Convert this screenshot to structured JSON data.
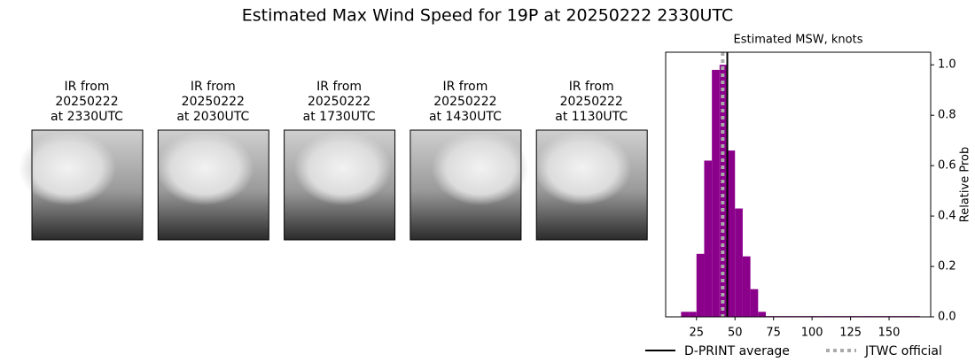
{
  "title": "Estimated Max Wind Speed for 19P at 20250222 2330UTC",
  "panels": [
    {
      "lines": [
        "IR from",
        "20250222",
        "at 2330UTC"
      ]
    },
    {
      "lines": [
        "IR from",
        "20250222",
        "at 2030UTC"
      ]
    },
    {
      "lines": [
        "IR from",
        "20250222",
        "at 1730UTC"
      ]
    },
    {
      "lines": [
        "IR from",
        "20250222",
        "at 1430UTC"
      ]
    },
    {
      "lines": [
        "IR from",
        "20250222",
        "at 1130UTC"
      ]
    }
  ],
  "chart_data": {
    "type": "histogram",
    "title": "Estimated MSW, knots",
    "ylabel": "Relative Prob",
    "yaxis_side": "right",
    "color": "#8b008b",
    "bins": [
      15,
      20,
      25,
      30,
      35,
      40,
      45,
      50,
      55,
      60,
      65,
      70,
      75,
      80,
      85,
      90,
      95,
      100,
      105,
      110,
      115,
      120,
      125,
      130,
      135,
      140,
      145,
      150,
      155,
      160,
      165,
      170
    ],
    "values": [
      0.02,
      0.02,
      0.25,
      0.62,
      0.98,
      1.0,
      0.66,
      0.43,
      0.24,
      0.11,
      0.02,
      0.003,
      0.003,
      0.003,
      0.003,
      0.003,
      0.003,
      0.003,
      0.003,
      0.003,
      0.003,
      0.003,
      0.003,
      0.003,
      0.003,
      0.003,
      0.003,
      0.003,
      0.003,
      0.003,
      0.003
    ],
    "xlim": [
      5,
      177
    ],
    "xticks": [
      25,
      50,
      75,
      100,
      125,
      150
    ],
    "ylim": [
      0,
      1.05
    ],
    "yticks": [
      {
        "value": 0,
        "label": "0.0"
      },
      {
        "value": 0.2,
        "label": "0.2"
      },
      {
        "value": 0.4,
        "label": "0.4"
      },
      {
        "value": 0.6,
        "label": "0.6"
      },
      {
        "value": 0.8,
        "label": "0.8"
      },
      {
        "value": 1.0,
        "label": "1.0"
      }
    ],
    "lines": [
      {
        "name": "D-PRINT average",
        "value": 45,
        "color": "#000000",
        "style": "solid"
      },
      {
        "name": "JTWC official",
        "value": 42,
        "color": "#aaaaaa",
        "style": "dotted"
      }
    ]
  }
}
